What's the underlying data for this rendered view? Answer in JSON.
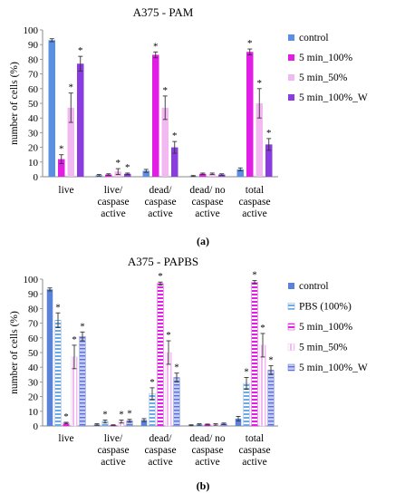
{
  "colors": {
    "control_a": "#5a8fe6",
    "magenta": "#e21ee6",
    "pink": "#f2b8f2",
    "purple": "#8a3ce0",
    "control_b": "#5a82d8",
    "pbs": "#6fa8e8"
  },
  "chart_data": [
    {
      "type": "bar",
      "title": "A375 - PAM",
      "ylabel": "number of cells (%)",
      "ylim": [
        0,
        100
      ],
      "yticks": [
        0,
        10,
        20,
        30,
        40,
        50,
        60,
        70,
        80,
        90,
        100
      ],
      "caption": "(a)",
      "categories": [
        [
          "live"
        ],
        [
          "live/",
          "caspase",
          "active"
        ],
        [
          "dead/",
          "caspase",
          "active"
        ],
        [
          "dead/ no",
          "caspase",
          "active"
        ],
        [
          "total",
          "caspase",
          "active"
        ]
      ],
      "series": [
        {
          "name": "control",
          "color": "#5a8fe6",
          "pattern": "solid",
          "values": [
            93,
            1,
            4,
            0.5,
            5
          ],
          "errors": [
            1,
            0.5,
            1,
            0.3,
            1
          ],
          "stars": [
            false,
            false,
            false,
            false,
            false
          ]
        },
        {
          "name": "5 min_100%",
          "color": "#e21ee6",
          "pattern": "solid",
          "values": [
            12,
            1.5,
            83,
            2,
            85
          ],
          "errors": [
            3,
            0.5,
            2,
            0.5,
            2
          ],
          "stars": [
            true,
            false,
            true,
            false,
            true
          ]
        },
        {
          "name": "5 min_50%",
          "color": "#f2b8f2",
          "pattern": "solid",
          "values": [
            47,
            3.5,
            47,
            2,
            50
          ],
          "errors": [
            10,
            2,
            8,
            0.5,
            10
          ],
          "stars": [
            true,
            true,
            true,
            false,
            true
          ]
        },
        {
          "name": "5 min_100%_W",
          "color": "#8a3ce0",
          "pattern": "solid",
          "values": [
            77,
            2,
            20,
            1.5,
            22
          ],
          "errors": [
            5,
            0.5,
            4,
            0.5,
            4
          ],
          "stars": [
            true,
            true,
            true,
            false,
            true
          ]
        }
      ]
    },
    {
      "type": "bar",
      "title": "A375 - PAPBS",
      "ylabel": "number of cells (%)",
      "ylim": [
        0,
        100
      ],
      "yticks": [
        0,
        10,
        20,
        30,
        40,
        50,
        60,
        70,
        80,
        90,
        100
      ],
      "caption": "(b)",
      "categories": [
        [
          "live"
        ],
        [
          "live/",
          "caspase",
          "active"
        ],
        [
          "dead/",
          "caspase",
          "active"
        ],
        [
          "dead/ no",
          "caspase",
          "active"
        ],
        [
          "total",
          "caspase",
          "active"
        ]
      ],
      "series": [
        {
          "name": "control",
          "color": "#5a82d8",
          "pattern": "solid",
          "values": [
            93,
            1,
            4,
            0.5,
            5
          ],
          "errors": [
            1,
            0.5,
            1,
            0.3,
            1.5
          ],
          "stars": [
            false,
            false,
            false,
            false,
            false
          ]
        },
        {
          "name": "PBS (100%)",
          "color": "#6fa8e8",
          "pattern": "hstripe",
          "values": [
            72,
            3,
            22,
            1,
            29
          ],
          "errors": [
            5,
            1,
            4,
            0.5,
            4
          ],
          "stars": [
            true,
            true,
            true,
            false,
            true
          ]
        },
        {
          "name": "5 min_100%",
          "color": "#e21ee6",
          "pattern": "hstripe",
          "values": [
            2,
            0.5,
            97,
            1,
            98
          ],
          "errors": [
            0.5,
            0.3,
            1,
            0.3,
            1
          ],
          "stars": [
            true,
            false,
            true,
            false,
            true
          ]
        },
        {
          "name": "5 min_50%",
          "color": "#f2b8f2",
          "pattern": "vstripe",
          "values": [
            47,
            3,
            50,
            1,
            55
          ],
          "errors": [
            8,
            1,
            8,
            0.5,
            8
          ],
          "stars": [
            true,
            true,
            true,
            false,
            true
          ]
        },
        {
          "name": "5 min_100%_W",
          "color": "#5a6fd8",
          "pattern": "boxed",
          "values": [
            61,
            3.5,
            33,
            1.5,
            38
          ],
          "errors": [
            3,
            1,
            3,
            0.5,
            3
          ],
          "stars": [
            true,
            true,
            true,
            false,
            true
          ]
        }
      ]
    }
  ]
}
